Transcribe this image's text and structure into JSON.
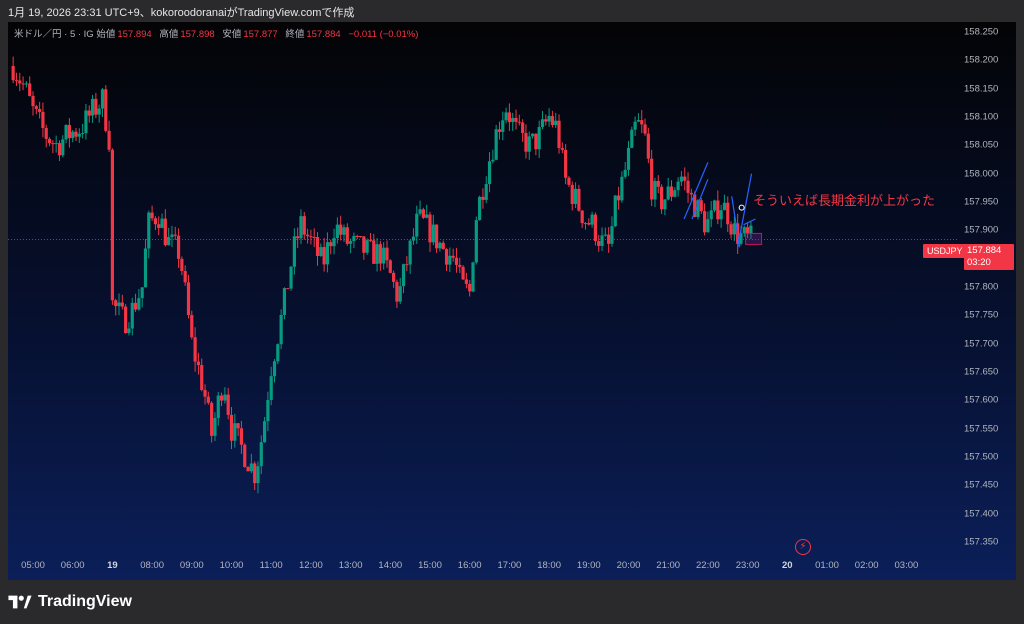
{
  "caption": "1月 19, 2026 23:31 UTC+9、kokoroodoranaiがTradingView.comで作成",
  "legend": {
    "symbol": "米ドル／円 · 5 · IG",
    "open_label": "始値",
    "open": "157.894",
    "high_label": "高値",
    "high": "157.898",
    "low_label": "安値",
    "low": "157.877",
    "close_label": "終値",
    "close": "157.884",
    "change": "−0.011 (−0.01%)"
  },
  "annotation": "そういえば長期金利が上がった",
  "symbol_tag": "USDJPY",
  "price_tag": {
    "price": "157.884",
    "countdown": "03:20"
  },
  "alert_icon": "lightning-icon",
  "logo_text": "TradingView",
  "colors": {
    "up": "#089981",
    "down": "#f23645",
    "trendline": "#2962ff",
    "price_line": "#f23645"
  },
  "chart_data": {
    "type": "candlestick",
    "instrument": "USDJPY",
    "timeframe": "5",
    "ylim": [
      157.35,
      158.25
    ],
    "y_ticks": [
      "158.250",
      "158.200",
      "158.150",
      "158.100",
      "158.050",
      "158.000",
      "157.950",
      "157.900",
      "157.850",
      "157.800",
      "157.750",
      "157.700",
      "157.650",
      "157.600",
      "157.550",
      "157.500",
      "157.450",
      "157.400",
      "157.350"
    ],
    "x_ticks": [
      {
        "label": "05:00",
        "h": 5
      },
      {
        "label": "06:00",
        "h": 6
      },
      {
        "label": "19",
        "h": 7,
        "bold": true
      },
      {
        "label": "08:00",
        "h": 8
      },
      {
        "label": "09:00",
        "h": 9
      },
      {
        "label": "10:00",
        "h": 10
      },
      {
        "label": "11:00",
        "h": 11
      },
      {
        "label": "12:00",
        "h": 12
      },
      {
        "label": "13:00",
        "h": 13
      },
      {
        "label": "14:00",
        "h": 14
      },
      {
        "label": "15:00",
        "h": 15
      },
      {
        "label": "16:00",
        "h": 16
      },
      {
        "label": "17:00",
        "h": 17
      },
      {
        "label": "18:00",
        "h": 18
      },
      {
        "label": "19:00",
        "h": 19
      },
      {
        "label": "20:00",
        "h": 20
      },
      {
        "label": "21:00",
        "h": 21
      },
      {
        "label": "22:00",
        "h": 22
      },
      {
        "label": "23:00",
        "h": 23
      },
      {
        "label": "20",
        "h": 24,
        "bold": true
      },
      {
        "label": "01:00",
        "h": 25
      },
      {
        "label": "02:00",
        "h": 26
      },
      {
        "label": "03:00",
        "h": 27
      }
    ],
    "current_price": 157.884,
    "anchors": [
      [
        4.5,
        158.19
      ],
      [
        4.8,
        158.15
      ],
      [
        5.0,
        158.11
      ],
      [
        5.3,
        158.07
      ],
      [
        5.6,
        158.05
      ],
      [
        5.9,
        158.07
      ],
      [
        6.2,
        158.08
      ],
      [
        6.5,
        158.11
      ],
      [
        6.75,
        158.13
      ],
      [
        6.95,
        158.05
      ],
      [
        7.0,
        157.77
      ],
      [
        7.3,
        157.74
      ],
      [
        7.5,
        157.76
      ],
      [
        7.75,
        157.8
      ],
      [
        7.9,
        157.91
      ],
      [
        8.15,
        157.93
      ],
      [
        8.4,
        157.88
      ],
      [
        8.7,
        157.86
      ],
      [
        9.0,
        157.7
      ],
      [
        9.3,
        157.62
      ],
      [
        9.5,
        157.54
      ],
      [
        9.8,
        157.64
      ],
      [
        10.0,
        157.55
      ],
      [
        10.3,
        157.51
      ],
      [
        10.6,
        157.47
      ],
      [
        10.8,
        157.55
      ],
      [
        11.0,
        157.66
      ],
      [
        11.3,
        157.76
      ],
      [
        11.55,
        157.86
      ],
      [
        11.75,
        157.91
      ],
      [
        12.0,
        157.88
      ],
      [
        12.3,
        157.84
      ],
      [
        12.6,
        157.91
      ],
      [
        12.9,
        157.88
      ],
      [
        13.2,
        157.87
      ],
      [
        13.5,
        157.86
      ],
      [
        13.75,
        157.86
      ],
      [
        14.0,
        157.82
      ],
      [
        14.2,
        157.78
      ],
      [
        14.4,
        157.84
      ],
      [
        14.7,
        157.92
      ],
      [
        15.0,
        157.9
      ],
      [
        15.3,
        157.87
      ],
      [
        15.6,
        157.85
      ],
      [
        15.8,
        157.8
      ],
      [
        16.0,
        157.79
      ],
      [
        16.15,
        157.92
      ],
      [
        16.4,
        158.0
      ],
      [
        16.7,
        158.08
      ],
      [
        16.9,
        158.12
      ],
      [
        17.2,
        158.07
      ],
      [
        17.5,
        158.05
      ],
      [
        17.7,
        158.06
      ],
      [
        18.0,
        158.1
      ],
      [
        18.2,
        158.08
      ],
      [
        18.4,
        157.99
      ],
      [
        18.7,
        157.95
      ],
      [
        18.9,
        157.92
      ],
      [
        19.1,
        157.91
      ],
      [
        19.3,
        157.88
      ],
      [
        19.5,
        157.87
      ],
      [
        19.7,
        157.95
      ],
      [
        19.9,
        158.0
      ],
      [
        20.2,
        158.09
      ],
      [
        20.4,
        158.07
      ],
      [
        20.6,
        157.97
      ],
      [
        20.8,
        157.95
      ],
      [
        21.1,
        157.97
      ],
      [
        21.3,
        158.0
      ],
      [
        21.55,
        157.96
      ],
      [
        21.8,
        157.93
      ],
      [
        21.95,
        157.91
      ],
      [
        22.1,
        157.92
      ],
      [
        22.3,
        157.95
      ],
      [
        22.5,
        157.93
      ],
      [
        22.65,
        157.9
      ],
      [
        22.8,
        157.89
      ],
      [
        22.95,
        157.885
      ],
      [
        23.1,
        157.884
      ]
    ]
  }
}
